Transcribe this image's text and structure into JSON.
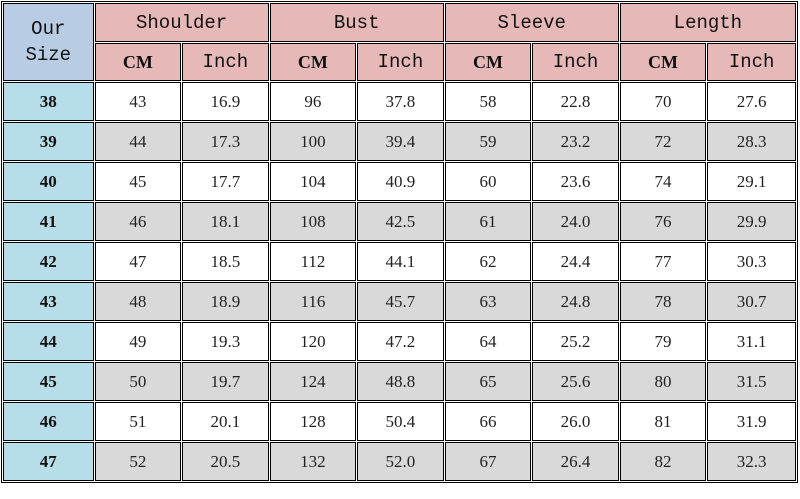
{
  "header": {
    "size_label_line1": "Our",
    "size_label_line2": "Size",
    "groups": [
      "Shoulder",
      "Bust",
      "Sleeve",
      "Length"
    ],
    "units": [
      "CM",
      "Inch"
    ]
  },
  "colors": {
    "size_header": "#b8cce4",
    "group_header": "#e6b8b7",
    "size_cell": "#b7dee8",
    "alt_row": "#d9d9d9"
  },
  "rows": [
    [
      "38",
      "43",
      "16.9",
      "96",
      "37.8",
      "58",
      "22.8",
      "70",
      "27.6"
    ],
    [
      "39",
      "44",
      "17.3",
      "100",
      "39.4",
      "59",
      "23.2",
      "72",
      "28.3"
    ],
    [
      "40",
      "45",
      "17.7",
      "104",
      "40.9",
      "60",
      "23.6",
      "74",
      "29.1"
    ],
    [
      "41",
      "46",
      "18.1",
      "108",
      "42.5",
      "61",
      "24.0",
      "76",
      "29.9"
    ],
    [
      "42",
      "47",
      "18.5",
      "112",
      "44.1",
      "62",
      "24.4",
      "77",
      "30.3"
    ],
    [
      "43",
      "48",
      "18.9",
      "116",
      "45.7",
      "63",
      "24.8",
      "78",
      "30.7"
    ],
    [
      "44",
      "49",
      "19.3",
      "120",
      "47.2",
      "64",
      "25.2",
      "79",
      "31.1"
    ],
    [
      "45",
      "50",
      "19.7",
      "124",
      "48.8",
      "65",
      "25.6",
      "80",
      "31.5"
    ],
    [
      "46",
      "51",
      "20.1",
      "128",
      "50.4",
      "66",
      "26.0",
      "81",
      "31.9"
    ],
    [
      "47",
      "52",
      "20.5",
      "132",
      "52.0",
      "67",
      "26.4",
      "82",
      "32.3"
    ]
  ]
}
